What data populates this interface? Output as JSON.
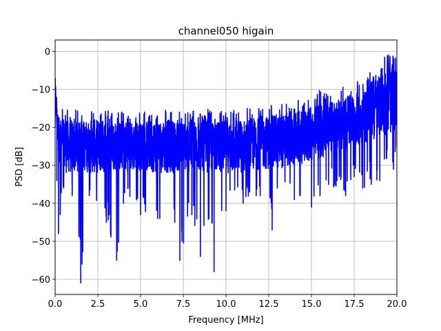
{
  "chart_data": {
    "type": "line",
    "title": "channel050 higain",
    "xlabel": "Frequency [MHz]",
    "ylabel": "PSD [dB]",
    "xlim": [
      0,
      20
    ],
    "ylim": [
      -64,
      3
    ],
    "grid": true,
    "xticks": [
      0,
      2.5,
      5,
      7.5,
      10,
      12.5,
      15,
      17.5,
      20
    ],
    "xtick_labels": [
      "0.0",
      "2.5",
      "5.0",
      "7.5",
      "10.0",
      "12.5",
      "15.0",
      "17.5",
      "20.0"
    ],
    "yticks": [
      0,
      -10,
      -20,
      -30,
      -40,
      -50,
      -60
    ],
    "ytick_labels": [
      "0",
      "−10",
      "−20",
      "−30",
      "−40",
      "−50",
      "−60"
    ],
    "series": [
      {
        "color": "#0000ff",
        "x": [
          0.0,
          0.1,
          0.2,
          0.3,
          0.5,
          1.0,
          1.5,
          2.0,
          3.0,
          3.6,
          4.0,
          5.0,
          6.0,
          7.0,
          7.3,
          8.0,
          8.5,
          9.0,
          9.3,
          10.0,
          11.0,
          12.0,
          12.7,
          13.0,
          14.0,
          15.0,
          15.5,
          16.0,
          17.0,
          17.5,
          18.0,
          18.5,
          19.0,
          19.4,
          19.8,
          20.0
        ],
        "mean": [
          -10,
          -18,
          -22,
          -24,
          -25,
          -25,
          -25,
          -25,
          -25,
          -25,
          -25,
          -25,
          -25,
          -25,
          -25,
          -25,
          -25,
          -25,
          -25,
          -25,
          -25,
          -24,
          -24,
          -24,
          -23,
          -22,
          -21,
          -20,
          -19,
          -18,
          -17,
          -16,
          -14,
          -13,
          -13,
          -12
        ],
        "upper": [
          -5,
          -12,
          -14,
          -15,
          -15,
          -15,
          -16,
          -15,
          -15,
          -16,
          -15,
          -16,
          -15,
          -15,
          -16,
          -15,
          -16,
          -15,
          -16,
          -15,
          -15,
          -14,
          -14,
          -14,
          -13,
          -12,
          -10,
          -11,
          -9,
          -8,
          -7,
          -4,
          -3,
          0,
          -1,
          -2
        ],
        "lower": [
          -20,
          -34,
          -48,
          -43,
          -36,
          -38,
          -61,
          -38,
          -45,
          -55,
          -40,
          -43,
          -44,
          -45,
          -55,
          -43,
          -54,
          -44,
          -58,
          -42,
          -40,
          -38,
          -47,
          -36,
          -39,
          -41,
          -38,
          -35,
          -38,
          -33,
          -36,
          -35,
          -34,
          -28,
          -31,
          -25
        ]
      }
    ]
  }
}
